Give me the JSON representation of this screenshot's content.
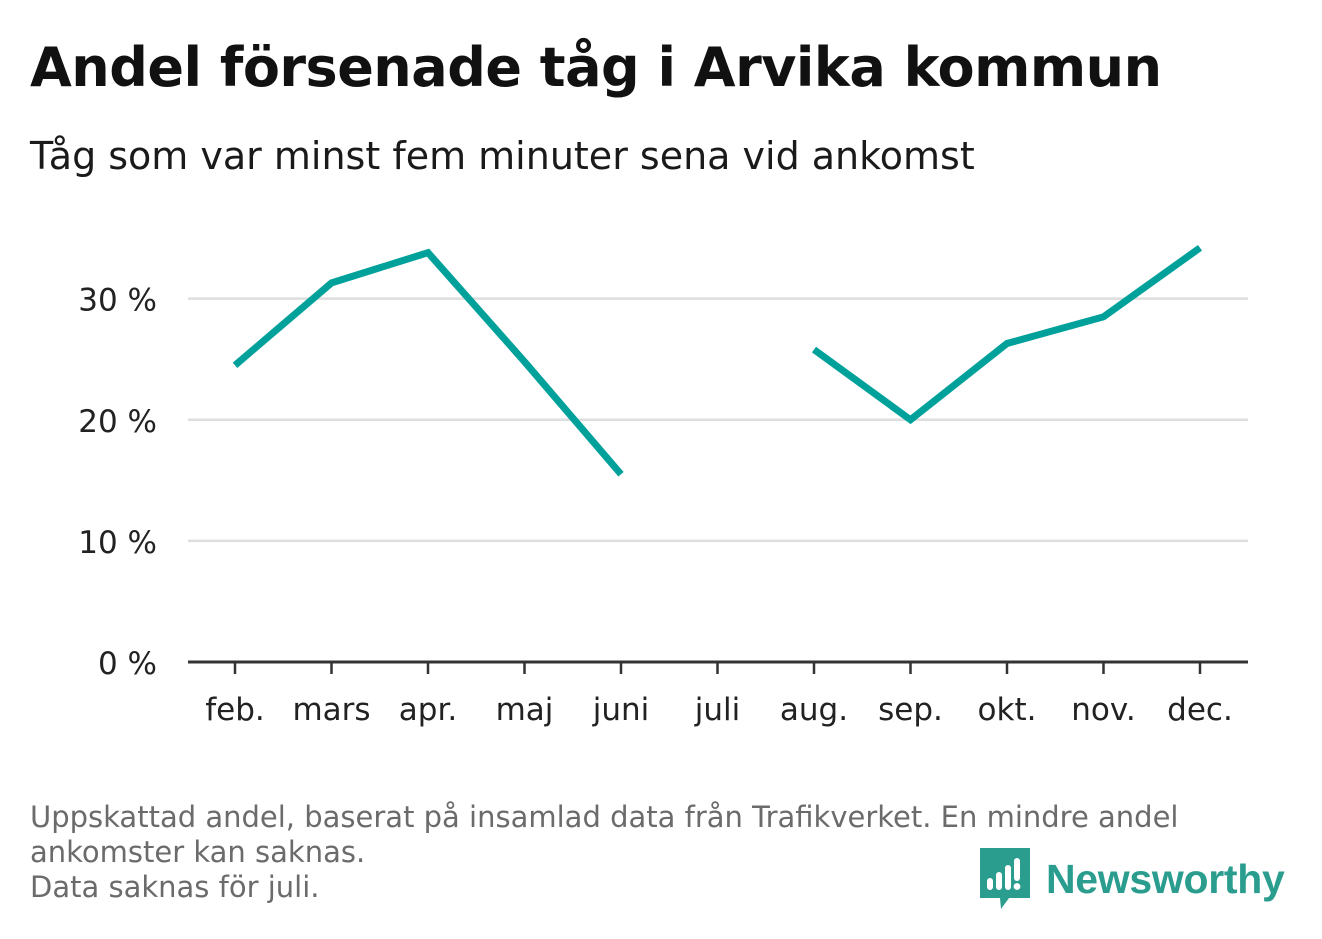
{
  "header": {
    "title": "Andel försenade tåg i Arvika kommun",
    "subtitle": "Tåg som var minst fem minuter sena vid ankomst"
  },
  "chart_data": {
    "type": "line",
    "categories": [
      "feb.",
      "mars",
      "apr.",
      "maj",
      "juni",
      "juli",
      "aug.",
      "sep.",
      "okt.",
      "nov.",
      "dec."
    ],
    "series": [
      {
        "values": [
          24.5,
          31.3,
          33.8,
          24.8,
          15.5,
          null,
          25.8,
          20.0,
          26.3,
          28.5,
          34.2
        ],
        "color": "#00a19a"
      }
    ],
    "yticks": [
      {
        "value": 0,
        "label": "0 %"
      },
      {
        "value": 10,
        "label": "10 %"
      },
      {
        "value": 20,
        "label": "20 %"
      },
      {
        "value": 30,
        "label": "30 %"
      }
    ],
    "ylim": [
      0,
      36
    ],
    "grid": true,
    "xlabel": "",
    "ylabel": ""
  },
  "footnote": {
    "line1": "Uppskattad andel, baserat på insamlad data från Trafikverket. En mindre andel",
    "line2": "ankomster kan saknas.",
    "line3": "Data saknas för juli."
  },
  "brand": {
    "name": "Newsworthy",
    "icon": "newsworthy-logo-icon",
    "color": "#2a9d8f"
  }
}
